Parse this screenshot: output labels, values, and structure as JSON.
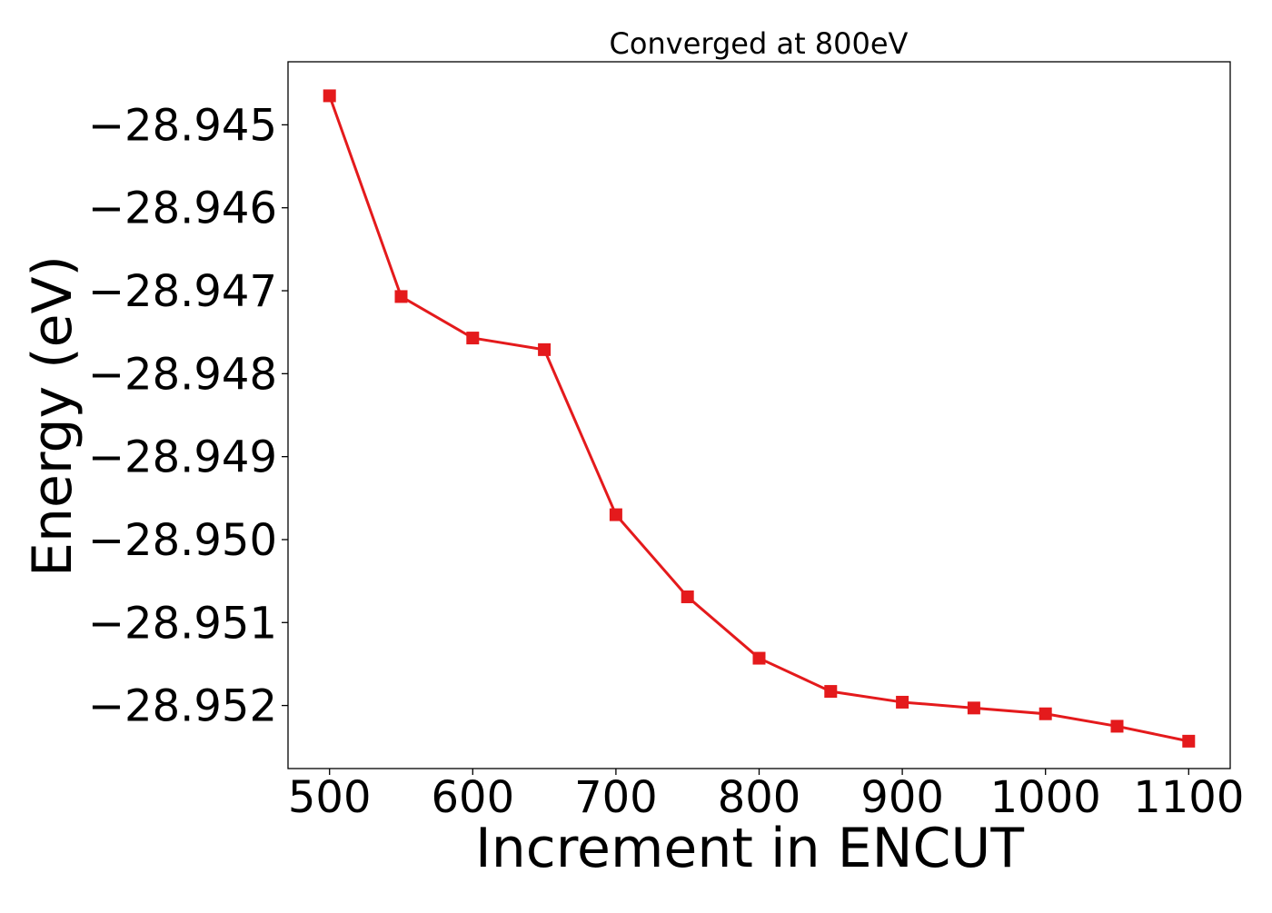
{
  "chart_data": {
    "type": "line",
    "title": "Converged at 800eV",
    "xlabel": "Increment in ENCUT",
    "ylabel": "Energy (eV)",
    "xlim": [
      471,
      1129
    ],
    "ylim": [
      -28.95276,
      -28.94424
    ],
    "x_ticks": [
      500,
      600,
      700,
      800,
      900,
      1000,
      1100
    ],
    "x_tick_labels": [
      "500",
      "600",
      "700",
      "800",
      "900",
      "1000",
      "1100"
    ],
    "y_ticks": [
      -28.945,
      -28.946,
      -28.947,
      -28.948,
      -28.949,
      -28.95,
      -28.951,
      -28.952
    ],
    "y_tick_labels": [
      "−28.945",
      "−28.946",
      "−28.947",
      "−28.948",
      "−28.949",
      "−28.950",
      "−28.951",
      "−28.952"
    ],
    "grid": false,
    "marker": "square",
    "color": "#e41a1c",
    "series": [
      {
        "x": [
          500,
          550,
          600,
          650,
          700,
          750,
          800,
          850,
          900,
          950,
          1000,
          1050,
          1100
        ],
        "y": [
          -28.94465,
          -28.94707,
          -28.94757,
          -28.94771,
          -28.9497,
          -28.95069,
          -28.95143,
          -28.95183,
          -28.95196,
          -28.95203,
          -28.9521,
          -28.95225,
          -28.95243
        ]
      }
    ]
  }
}
